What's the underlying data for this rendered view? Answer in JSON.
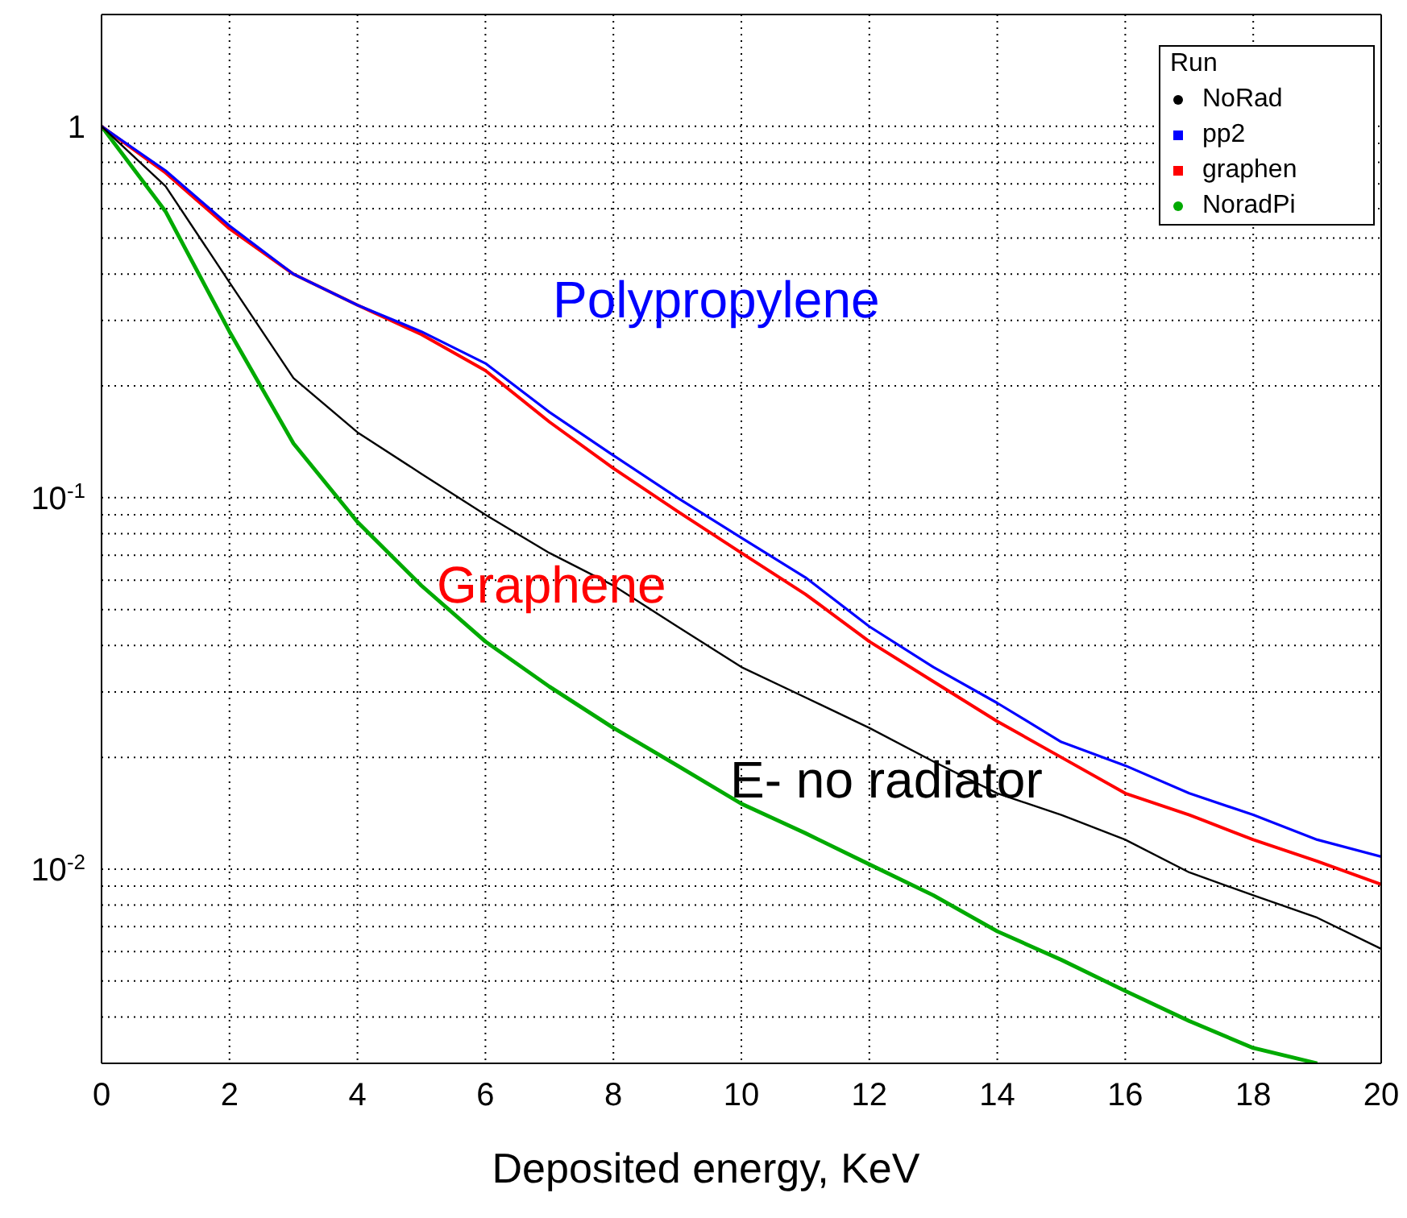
{
  "chart_data": {
    "type": "line",
    "xlabel": "Deposited energy, KeV",
    "legend_title": "Run",
    "legend": "top right",
    "grid": true,
    "log": "y",
    "marker": "none",
    "line_style": "solid",
    "x": [
      0,
      1,
      2,
      3,
      4,
      5,
      6,
      7,
      8,
      9,
      10,
      11,
      12,
      13,
      14,
      15,
      16,
      17,
      18,
      19,
      20
    ],
    "xlim": [
      0,
      20
    ],
    "xticks": [
      0,
      2,
      4,
      6,
      8,
      10,
      12,
      14,
      16,
      18,
      20
    ],
    "ylim": [
      0.003,
      2
    ],
    "yticks": [
      {
        "value": 0.003,
        "label": null
      },
      {
        "value": 0.004,
        "label": null
      },
      {
        "value": 0.005,
        "label": null
      },
      {
        "value": 0.006,
        "label": null
      },
      {
        "value": 0.007,
        "label": null
      },
      {
        "value": 0.008,
        "label": null
      },
      {
        "value": 0.009,
        "label": null
      },
      {
        "value": 0.01,
        "label": "10$^{-2}$"
      },
      {
        "value": 0.02,
        "label": null
      },
      {
        "value": 0.03,
        "label": null
      },
      {
        "value": 0.04,
        "label": null
      },
      {
        "value": 0.05,
        "label": null
      },
      {
        "value": 0.06,
        "label": null
      },
      {
        "value": 0.07,
        "label": null
      },
      {
        "value": 0.08,
        "label": null
      },
      {
        "value": 0.09,
        "label": null
      },
      {
        "value": 0.1,
        "label": "10$^{-1}$"
      },
      {
        "value": 0.2,
        "label": null
      },
      {
        "value": 0.3,
        "label": null
      },
      {
        "value": 0.4,
        "label": null
      },
      {
        "value": 0.5,
        "label": null
      },
      {
        "value": 0.6,
        "label": null
      },
      {
        "value": 0.7,
        "label": null
      },
      {
        "value": 0.8,
        "label": null
      },
      {
        "value": 0.9,
        "label": null
      },
      {
        "value": 1,
        "label": "1"
      }
    ],
    "series": [
      {
        "name": "NoRad",
        "color": "#000000",
        "values": [
          1,
          0.69,
          0.38,
          0.21,
          0.15,
          0.116,
          0.09,
          0.071,
          0.058,
          0.045,
          0.035,
          0.029,
          0.024,
          0.0195,
          0.016,
          0.014,
          0.012,
          0.0098,
          0.0085,
          0.0074,
          0.0061
        ]
      },
      {
        "name": "pp2",
        "color": "#0000ff",
        "values": [
          1,
          0.76,
          0.54,
          0.4,
          0.33,
          0.28,
          0.23,
          0.17,
          0.13,
          0.1,
          0.078,
          0.061,
          0.045,
          0.035,
          0.028,
          0.022,
          0.019,
          0.016,
          0.014,
          0.012,
          0.0108
        ]
      },
      {
        "name": "graphen",
        "color": "#ff0000",
        "values": [
          1,
          0.75,
          0.53,
          0.4,
          0.33,
          0.275,
          0.22,
          0.16,
          0.12,
          0.092,
          0.071,
          0.055,
          0.041,
          0.032,
          0.025,
          0.02,
          0.016,
          0.014,
          0.012,
          0.0105,
          0.0091
        ]
      },
      {
        "name": "NoradPi",
        "color": "#00aa00",
        "values": [
          1,
          0.59,
          0.28,
          0.14,
          0.086,
          0.058,
          0.041,
          0.031,
          0.024,
          0.019,
          0.015,
          0.0125,
          0.0103,
          0.0085,
          0.0068,
          0.0057,
          0.0047,
          0.0039,
          0.0033,
          0.003,
          null
        ]
      }
    ],
    "annotations": [
      "Polypropylene",
      "Graphene",
      "E- no radiator"
    ]
  }
}
